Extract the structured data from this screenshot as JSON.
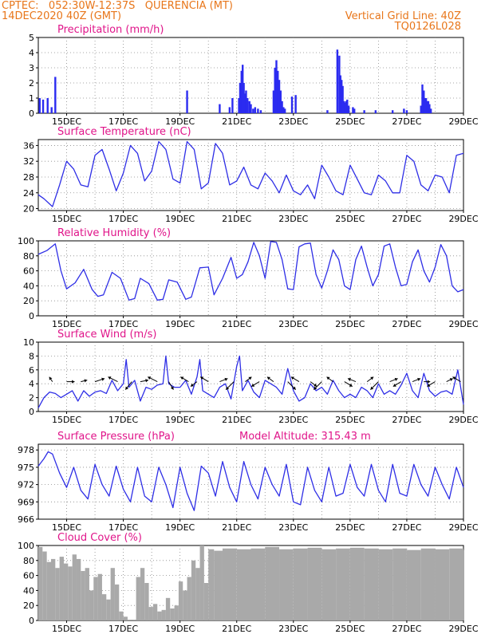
{
  "header": {
    "line1_left": "CPTEC:   052:30W-12:37S   QUERENCIA (MT)",
    "line2_left": "14DEC2020 40Z (GMT)",
    "line2_right": "Vertical Grid Line: 40Z",
    "line3_right": "TQ0126L028"
  },
  "x_axis": {
    "start_day": 14,
    "end_day": 29,
    "tick_days": [
      15,
      17,
      19,
      21,
      23,
      25,
      27,
      29
    ],
    "tick_labels": [
      "15DEC",
      "17DEC",
      "19DEC",
      "21DEC",
      "23DEC",
      "25DEC",
      "27DEC",
      "29DEC"
    ]
  },
  "chart_data": [
    {
      "type": "bar",
      "title": "Precipitation (mm/h)",
      "ylim": [
        0,
        5
      ],
      "yticks": [
        0,
        1,
        2,
        3,
        4,
        5
      ],
      "color": "#2b2bf0",
      "x": [
        14.05,
        14.17,
        14.33,
        14.47,
        14.6,
        19.25,
        20.4,
        20.75,
        20.85,
        21.08,
        21.12,
        21.17,
        21.21,
        21.25,
        21.29,
        21.33,
        21.38,
        21.45,
        21.5,
        21.58,
        21.65,
        21.75,
        21.85,
        22.3,
        22.35,
        22.4,
        22.45,
        22.5,
        22.55,
        22.6,
        22.65,
        22.7,
        22.95,
        23.08,
        24.2,
        24.55,
        24.62,
        24.66,
        24.7,
        24.74,
        24.78,
        24.82,
        24.86,
        24.9,
        24.95,
        25.1,
        25.15,
        25.5,
        25.9,
        26.5,
        26.9,
        27.0,
        27.5,
        27.55,
        27.6,
        27.64,
        27.68,
        27.72,
        27.76,
        27.8,
        27.85
      ],
      "values": [
        1.0,
        0.9,
        1.0,
        0.4,
        2.4,
        1.5,
        0.6,
        0.4,
        1.0,
        1.0,
        2.0,
        2.8,
        3.2,
        2.0,
        1.3,
        1.5,
        1.0,
        0.8,
        0.6,
        0.3,
        0.4,
        0.3,
        0.2,
        1.5,
        3.0,
        3.5,
        2.8,
        2.2,
        1.5,
        0.8,
        0.4,
        0.3,
        1.1,
        1.2,
        0.2,
        4.2,
        3.8,
        2.5,
        2.2,
        1.8,
        0.8,
        0.7,
        0.8,
        0.9,
        0.5,
        0.4,
        0.3,
        0.2,
        0.2,
        0.2,
        0.3,
        0.2,
        0.5,
        1.9,
        1.5,
        1.0,
        1.0,
        0.8,
        0.8,
        0.6,
        0.3
      ]
    },
    {
      "type": "line",
      "title": "Surface Temperature (nC)",
      "ylim": [
        19.5,
        37.5
      ],
      "yticks": [
        20,
        24,
        28,
        32,
        36
      ],
      "color": "#2e2ee6",
      "x": [
        14.0,
        14.2,
        14.5,
        14.75,
        15.0,
        15.25,
        15.5,
        15.75,
        16.0,
        16.25,
        16.5,
        16.75,
        17.0,
        17.25,
        17.5,
        17.75,
        18.0,
        18.25,
        18.5,
        18.75,
        19.0,
        19.25,
        19.5,
        19.75,
        20.0,
        20.25,
        20.5,
        20.75,
        21.0,
        21.25,
        21.5,
        21.75,
        22.0,
        22.25,
        22.5,
        22.75,
        23.0,
        23.25,
        23.5,
        23.75,
        24.0,
        24.25,
        24.5,
        24.75,
        25.0,
        25.25,
        25.5,
        25.75,
        26.0,
        26.25,
        26.5,
        26.75,
        27.0,
        27.25,
        27.5,
        27.75,
        28.0,
        28.25,
        28.5,
        28.75,
        29.0
      ],
      "values": [
        23.5,
        22.5,
        20.5,
        26.0,
        32.0,
        30.0,
        26.0,
        25.5,
        33.5,
        35.0,
        30.0,
        24.5,
        29.0,
        36.0,
        34.0,
        27.0,
        29.5,
        37.0,
        35.0,
        27.5,
        26.5,
        37.0,
        35.0,
        25.0,
        26.5,
        36.5,
        34.0,
        26.0,
        27.0,
        30.5,
        26.0,
        25.0,
        29.0,
        27.0,
        24.0,
        28.5,
        24.5,
        23.5,
        26.0,
        22.5,
        31.0,
        28.0,
        24.5,
        23.5,
        31.0,
        27.5,
        24.0,
        23.5,
        28.5,
        27.0,
        24.0,
        24.0,
        33.5,
        32.0,
        26.0,
        24.5,
        28.5,
        28.0,
        24.0,
        33.5,
        34.0
      ]
    },
    {
      "type": "line",
      "title": "Relative Humidity (%)",
      "ylim": [
        0,
        100
      ],
      "yticks": [
        0,
        20,
        40,
        60,
        80,
        100
      ],
      "color": "#2e2ee6",
      "x": [
        14.0,
        14.3,
        14.6,
        14.8,
        15.0,
        15.3,
        15.6,
        15.9,
        16.1,
        16.3,
        16.6,
        16.9,
        17.2,
        17.4,
        17.6,
        17.9,
        18.2,
        18.4,
        18.6,
        18.9,
        19.2,
        19.4,
        19.7,
        20.0,
        20.2,
        20.5,
        20.8,
        21.0,
        21.2,
        21.4,
        21.6,
        21.8,
        22.0,
        22.2,
        22.4,
        22.6,
        22.8,
        23.0,
        23.2,
        23.4,
        23.6,
        23.8,
        24.0,
        24.2,
        24.4,
        24.6,
        24.8,
        25.0,
        25.2,
        25.4,
        25.6,
        25.8,
        26.0,
        26.2,
        26.4,
        26.6,
        26.8,
        27.0,
        27.2,
        27.4,
        27.6,
        27.8,
        28.0,
        28.2,
        28.4,
        28.6,
        28.8,
        29.0
      ],
      "values": [
        82,
        87,
        96,
        60,
        36,
        44,
        62,
        35,
        26,
        28,
        58,
        50,
        21,
        23,
        50,
        43,
        21,
        22,
        48,
        45,
        22,
        25,
        64,
        65,
        28,
        50,
        78,
        50,
        55,
        72,
        98,
        80,
        50,
        99,
        98,
        75,
        36,
        35,
        92,
        96,
        97,
        55,
        37,
        60,
        88,
        75,
        40,
        35,
        75,
        93,
        65,
        40,
        55,
        93,
        96,
        65,
        40,
        42,
        72,
        88,
        60,
        45,
        65,
        95,
        80,
        40,
        32,
        35
      ]
    },
    {
      "type": "line",
      "title": "Surface Wind (m/s)",
      "ylim": [
        0,
        10
      ],
      "yticks": [
        0,
        2,
        4,
        6,
        8,
        10
      ],
      "color": "#2e2ee6",
      "x": [
        14.0,
        14.2,
        14.4,
        14.6,
        14.8,
        15.0,
        15.2,
        15.4,
        15.6,
        15.8,
        16.0,
        16.2,
        16.4,
        16.6,
        16.8,
        17.0,
        17.1,
        17.2,
        17.4,
        17.6,
        17.8,
        18.0,
        18.2,
        18.4,
        18.5,
        18.6,
        18.8,
        19.0,
        19.2,
        19.4,
        19.6,
        19.7,
        19.8,
        20.0,
        20.2,
        20.4,
        20.6,
        20.8,
        21.0,
        21.1,
        21.2,
        21.4,
        21.6,
        21.8,
        22.0,
        22.2,
        22.4,
        22.6,
        22.8,
        23.0,
        23.2,
        23.4,
        23.6,
        23.8,
        24.0,
        24.2,
        24.4,
        24.6,
        24.8,
        25.0,
        25.2,
        25.4,
        25.6,
        25.8,
        26.0,
        26.2,
        26.4,
        26.6,
        26.8,
        27.0,
        27.2,
        27.4,
        27.6,
        27.8,
        28.0,
        28.2,
        28.4,
        28.6,
        28.8,
        29.0
      ],
      "values": [
        0.5,
        2.0,
        2.8,
        2.6,
        2.0,
        2.5,
        3.0,
        1.5,
        3.0,
        2.2,
        2.8,
        3.0,
        2.6,
        4.5,
        3.0,
        4.0,
        7.5,
        3.5,
        4.5,
        1.5,
        3.5,
        3.2,
        3.8,
        4.0,
        8.0,
        4.0,
        3.5,
        3.5,
        4.5,
        2.5,
        5.0,
        7.5,
        3.0,
        2.5,
        2.0,
        3.5,
        4.0,
        1.8,
        6.5,
        8.0,
        3.0,
        4.5,
        2.8,
        2.0,
        4.5,
        4.0,
        3.5,
        2.5,
        6.2,
        3.0,
        1.5,
        2.0,
        4.0,
        3.0,
        3.5,
        2.5,
        4.5,
        3.0,
        2.0,
        2.5,
        2.0,
        3.5,
        3.0,
        2.0,
        4.0,
        2.5,
        3.0,
        2.5,
        3.8,
        5.5,
        3.0,
        2.0,
        5.5,
        3.0,
        2.2,
        2.8,
        3.0,
        2.5,
        6.0,
        1.0
      ],
      "vectors": {
        "x": [
          14.5,
          15.0,
          15.5,
          16.0,
          16.8,
          17.3,
          17.6,
          18.2,
          18.6,
          19.3,
          19.6,
          20.0,
          20.4,
          20.9,
          21.3,
          21.8,
          22.3,
          22.8,
          23.2,
          23.6,
          24.0,
          24.4,
          24.8,
          25.2,
          25.6,
          26.0,
          26.4,
          26.8,
          27.2,
          27.6,
          28.0,
          28.4,
          28.9
        ],
        "dx": [
          -4,
          10,
          8,
          12,
          -12,
          -8,
          10,
          -12,
          6,
          -10,
          -8,
          -10,
          10,
          -10,
          8,
          -10,
          -8,
          10,
          -10,
          8,
          -10,
          -8,
          10,
          -10,
          8,
          -10,
          10,
          -10,
          10,
          8,
          -10,
          8,
          -10
        ],
        "dy": [
          -6,
          0,
          -2,
          -4,
          -6,
          10,
          -2,
          -6,
          10,
          -6,
          6,
          -6,
          -4,
          10,
          -6,
          6,
          -6,
          10,
          -6,
          6,
          10,
          -6,
          6,
          -4,
          -6,
          10,
          -4,
          6,
          -4,
          0,
          6,
          -4,
          -6
        ]
      }
    },
    {
      "type": "line",
      "title": "Surface Pressure (hPa)",
      "subtitle": "Model Altitude: 315.43 m",
      "ylim": [
        966,
        979
      ],
      "yticks": [
        966,
        969,
        972,
        975,
        978
      ],
      "color": "#2e2ee6",
      "x": [
        14.0,
        14.2,
        14.35,
        14.5,
        14.75,
        15.0,
        15.25,
        15.5,
        15.75,
        16.0,
        16.25,
        16.5,
        16.75,
        17.0,
        17.25,
        17.5,
        17.75,
        18.0,
        18.25,
        18.5,
        18.75,
        19.0,
        19.25,
        19.5,
        19.75,
        20.0,
        20.25,
        20.5,
        20.75,
        21.0,
        21.25,
        21.5,
        21.75,
        22.0,
        22.25,
        22.5,
        22.75,
        23.0,
        23.25,
        23.5,
        23.75,
        24.0,
        24.25,
        24.5,
        24.75,
        25.0,
        25.25,
        25.5,
        25.75,
        26.0,
        26.25,
        26.5,
        26.75,
        27.0,
        27.25,
        27.5,
        27.75,
        28.0,
        28.25,
        28.5,
        28.75,
        29.0
      ],
      "values": [
        975.2,
        976.5,
        977.7,
        977.3,
        974.0,
        971.5,
        975.0,
        971.0,
        969.5,
        975.5,
        972.0,
        970.0,
        975.2,
        971.2,
        969.0,
        975.0,
        970.0,
        969.0,
        975.0,
        972.0,
        968.0,
        975.0,
        970.5,
        967.5,
        975.2,
        974.0,
        970.0,
        976.0,
        971.5,
        969.0,
        976.0,
        972.0,
        969.5,
        975.0,
        972.0,
        970.0,
        975.5,
        969.0,
        968.5,
        975.0,
        971.0,
        969.0,
        975.0,
        970.0,
        970.5,
        975.5,
        971.5,
        970.0,
        975.5,
        971.0,
        969.0,
        975.5,
        970.5,
        970.0,
        975.5,
        972.0,
        970.0,
        975.0,
        972.0,
        969.5,
        975.0,
        971.5
      ]
    },
    {
      "type": "area",
      "title": "Cloud Cover (%)",
      "ylim": [
        0,
        100
      ],
      "yticks": [
        0,
        20,
        40,
        60,
        80,
        100
      ],
      "color": "#a9a9a9",
      "x": [
        14.0,
        14.15,
        14.3,
        14.45,
        14.6,
        14.75,
        14.9,
        15.05,
        15.2,
        15.35,
        15.5,
        15.65,
        15.8,
        15.95,
        16.1,
        16.25,
        16.4,
        16.55,
        16.7,
        16.85,
        17.0,
        17.15,
        17.3,
        17.45,
        17.6,
        17.75,
        17.9,
        18.05,
        18.2,
        18.35,
        18.5,
        18.65,
        18.8,
        18.95,
        19.1,
        19.25,
        19.4,
        19.55,
        19.7,
        19.85,
        20.0,
        20.2,
        20.5,
        21.0,
        21.5,
        22.0,
        22.5,
        23.0,
        23.5,
        24.0,
        24.5,
        25.0,
        25.5,
        26.0,
        26.5,
        27.0,
        27.5,
        28.0,
        28.5,
        29.0
      ],
      "values": [
        98,
        92,
        78,
        82,
        70,
        85,
        76,
        72,
        88,
        82,
        66,
        70,
        40,
        58,
        62,
        35,
        28,
        70,
        48,
        12,
        5,
        1,
        1,
        58,
        70,
        50,
        18,
        22,
        12,
        14,
        30,
        16,
        20,
        52,
        40,
        58,
        80,
        70,
        100,
        50,
        95,
        93,
        96,
        95,
        96,
        98,
        95,
        96,
        97,
        95,
        96,
        97,
        96,
        95,
        96,
        94,
        96,
        95,
        96,
        94
      ]
    }
  ]
}
